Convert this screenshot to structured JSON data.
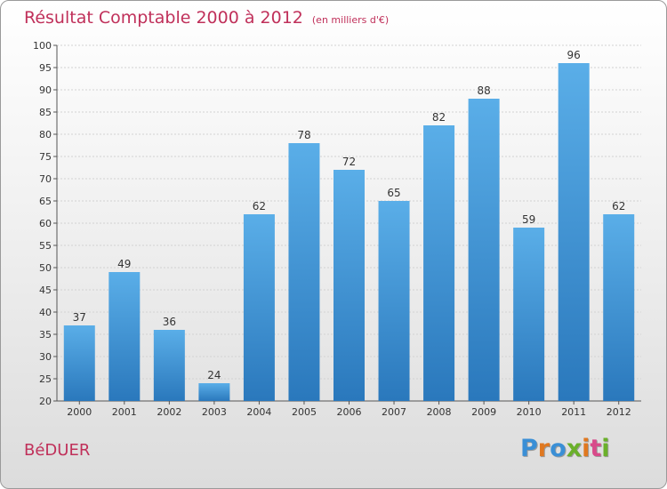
{
  "chart_data": {
    "type": "bar",
    "title": "Résultat Comptable 2000 à 2012",
    "subtitle": "(en milliers d'€)",
    "categories": [
      "2000",
      "2001",
      "2002",
      "2003",
      "2004",
      "2005",
      "2006",
      "2007",
      "2008",
      "2009",
      "2010",
      "2011",
      "2012"
    ],
    "values": [
      37,
      49,
      36,
      24,
      62,
      78,
      72,
      65,
      82,
      88,
      59,
      96,
      62
    ],
    "xlabel": "",
    "ylabel": "",
    "ylim": [
      20,
      100
    ],
    "ytick_step": 5,
    "grid": true,
    "bar_color": "#3a8fd6"
  },
  "place_name": "BéDUER",
  "brand": {
    "letters": [
      "P",
      "r",
      "o",
      "x",
      "i",
      "t",
      "i"
    ],
    "colors": [
      "#3a8fd6",
      "#e07820",
      "#3a8fd6",
      "#6ab02a",
      "#e07820",
      "#d84a8a",
      "#6ab02a"
    ]
  }
}
